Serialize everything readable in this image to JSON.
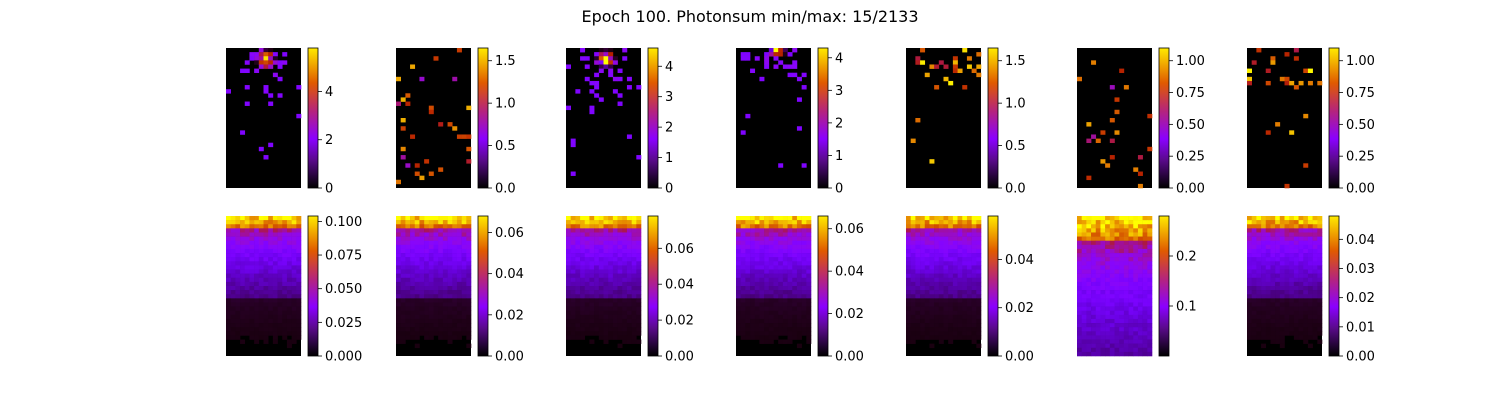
{
  "title": "Epoch 100. Photonsum min/max: 15/2133",
  "colormap": "gnuplot",
  "chart_data": [
    {
      "type": "heatmap",
      "row": 1,
      "col": 1,
      "distribution": "hotspot",
      "hotspot": [
        0.53,
        0.08
      ],
      "grid": [
        16,
        34
      ],
      "clim": [
        0,
        5.8
      ],
      "colorbar_ticks": [
        0,
        2,
        4
      ],
      "colorbar_tick_labels": [
        "0",
        "2",
        "4"
      ]
    },
    {
      "type": "heatmap",
      "row": 1,
      "col": 2,
      "distribution": "sparse",
      "grid": [
        16,
        34
      ],
      "clim": [
        0,
        1.65
      ],
      "colorbar_ticks": [
        0,
        0.5,
        1.0,
        1.5
      ],
      "colorbar_tick_labels": [
        "0.0",
        "0.5",
        "1.0",
        "1.5"
      ]
    },
    {
      "type": "heatmap",
      "row": 1,
      "col": 3,
      "distribution": "hotspot",
      "hotspot": [
        0.53,
        0.08
      ],
      "grid": [
        16,
        34
      ],
      "clim": [
        0,
        4.6
      ],
      "colorbar_ticks": [
        0,
        1,
        2,
        3,
        4
      ],
      "colorbar_tick_labels": [
        "0",
        "1",
        "2",
        "3",
        "4"
      ]
    },
    {
      "type": "heatmap",
      "row": 1,
      "col": 4,
      "distribution": "hotspot",
      "hotspot": [
        0.55,
        0.0
      ],
      "grid": [
        16,
        34
      ],
      "clim": [
        0,
        4.3
      ],
      "colorbar_ticks": [
        0,
        1,
        2,
        3,
        4
      ],
      "colorbar_tick_labels": [
        "0",
        "1",
        "2",
        "3",
        "4"
      ]
    },
    {
      "type": "heatmap",
      "row": 1,
      "col": 5,
      "distribution": "sparse-top",
      "grid": [
        16,
        34
      ],
      "clim": [
        0,
        1.65
      ],
      "colorbar_ticks": [
        0,
        0.5,
        1.0,
        1.5
      ],
      "colorbar_tick_labels": [
        "0.0",
        "0.5",
        "1.0",
        "1.5"
      ]
    },
    {
      "type": "heatmap",
      "row": 1,
      "col": 6,
      "distribution": "sparse",
      "grid": [
        16,
        34
      ],
      "clim": [
        0,
        1.1
      ],
      "colorbar_ticks": [
        0,
        0.25,
        0.5,
        0.75,
        1.0
      ],
      "colorbar_tick_labels": [
        "0.00",
        "0.25",
        "0.50",
        "0.75",
        "1.00"
      ]
    },
    {
      "type": "heatmap",
      "row": 1,
      "col": 7,
      "distribution": "sparse-top",
      "grid": [
        16,
        34
      ],
      "clim": [
        0,
        1.1
      ],
      "colorbar_ticks": [
        0,
        0.25,
        0.5,
        0.75,
        1.0
      ],
      "colorbar_tick_labels": [
        "0.00",
        "0.25",
        "0.50",
        "0.75",
        "1.00"
      ]
    },
    {
      "type": "heatmap",
      "row": 2,
      "col": 1,
      "distribution": "gradient",
      "grid": [
        16,
        34
      ],
      "clim": [
        0,
        0.104
      ],
      "colorbar_ticks": [
        0,
        0.025,
        0.05,
        0.075,
        0.1
      ],
      "colorbar_tick_labels": [
        "0.000",
        "0.025",
        "0.050",
        "0.075",
        "0.100"
      ]
    },
    {
      "type": "heatmap",
      "row": 2,
      "col": 2,
      "distribution": "gradient",
      "grid": [
        16,
        34
      ],
      "clim": [
        0,
        0.068
      ],
      "colorbar_ticks": [
        0,
        0.02,
        0.04,
        0.06
      ],
      "colorbar_tick_labels": [
        "0.00",
        "0.02",
        "0.04",
        "0.06"
      ]
    },
    {
      "type": "heatmap",
      "row": 2,
      "col": 3,
      "distribution": "gradient",
      "grid": [
        16,
        34
      ],
      "clim": [
        0,
        0.078
      ],
      "colorbar_ticks": [
        0,
        0.02,
        0.04,
        0.06
      ],
      "colorbar_tick_labels": [
        "0.00",
        "0.02",
        "0.04",
        "0.06"
      ]
    },
    {
      "type": "heatmap",
      "row": 2,
      "col": 4,
      "distribution": "gradient",
      "grid": [
        16,
        34
      ],
      "clim": [
        0,
        0.066
      ],
      "colorbar_ticks": [
        0,
        0.02,
        0.04,
        0.06
      ],
      "colorbar_tick_labels": [
        "0.00",
        "0.02",
        "0.04",
        "0.06"
      ]
    },
    {
      "type": "heatmap",
      "row": 2,
      "col": 5,
      "distribution": "gradient",
      "grid": [
        16,
        34
      ],
      "clim": [
        0,
        0.058
      ],
      "colorbar_ticks": [
        0,
        0.02,
        0.04
      ],
      "colorbar_tick_labels": [
        "0.00",
        "0.02",
        "0.04"
      ]
    },
    {
      "type": "heatmap",
      "row": 2,
      "col": 6,
      "distribution": "gradient-wide",
      "grid": [
        16,
        34
      ],
      "clim": [
        0,
        0.28
      ],
      "colorbar_ticks": [
        0.1,
        0.2
      ],
      "colorbar_tick_labels": [
        "0.1",
        "0.2"
      ]
    },
    {
      "type": "heatmap",
      "row": 2,
      "col": 7,
      "distribution": "gradient",
      "grid": [
        16,
        34
      ],
      "clim": [
        0,
        0.048
      ],
      "colorbar_ticks": [
        0,
        0.01,
        0.02,
        0.03,
        0.04
      ],
      "colorbar_tick_labels": [
        "0.00",
        "0.01",
        "0.02",
        "0.03",
        "0.04"
      ]
    }
  ]
}
